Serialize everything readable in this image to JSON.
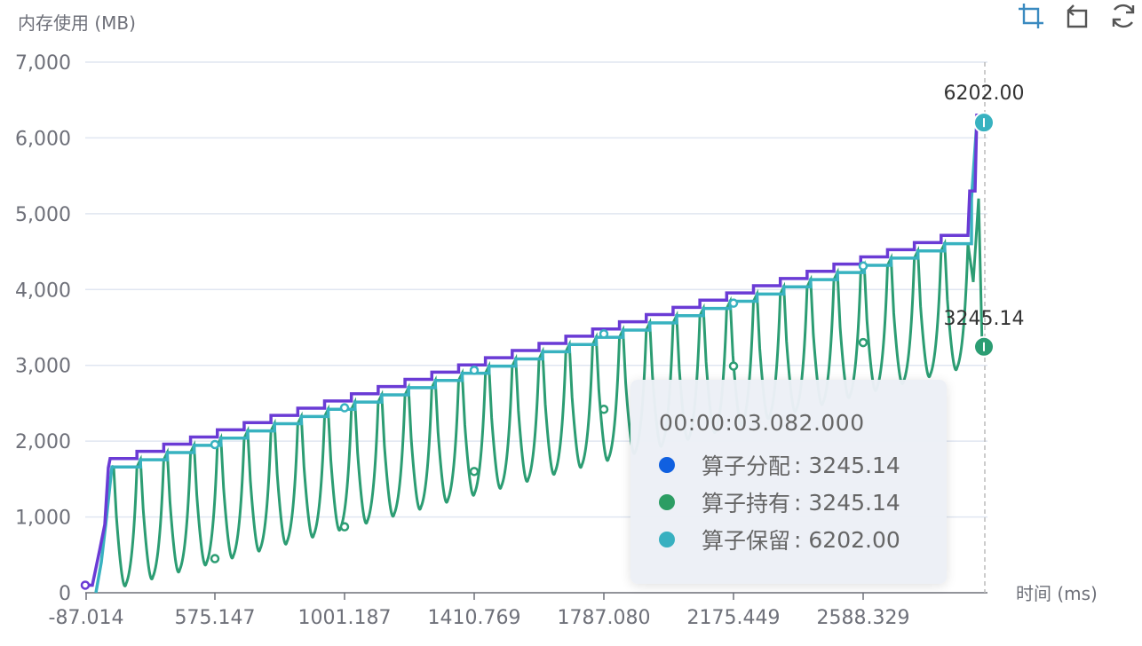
{
  "toolbar": {
    "icons": [
      "zoom-icon",
      "zoom-reset-icon",
      "restore-icon"
    ]
  },
  "chart_data": {
    "type": "line",
    "ylabel": "内存使用 (MB)",
    "xlabel": "时间 (ms)",
    "ylim": [
      0,
      7000
    ],
    "yticks": [
      "0",
      "1,000",
      "2,000",
      "3,000",
      "4,000",
      "5,000",
      "6,000",
      "7,000"
    ],
    "xticks": [
      "-87.014",
      "575.147",
      "1001.187",
      "1410.769",
      "1787.080",
      "2175.449",
      "2588.329"
    ],
    "grid": true,
    "series": [
      {
        "name": "算子分配",
        "color": "#6a3bd5",
        "end_value": 3245.14
      },
      {
        "name": "算子持有",
        "color": "#2c9d73",
        "end_value": 3245.14,
        "end_label": "3245.14"
      },
      {
        "name": "算子保留",
        "color": "#38b2c0",
        "end_value": 6202.0,
        "end_label": "6202.00"
      }
    ],
    "tooltip": {
      "title": "00:00:03.082.000",
      "rows": [
        {
          "name": "算子分配",
          "value": "3245.14",
          "color": "#1060e0"
        },
        {
          "name": "算子持有",
          "value": "3245.14",
          "color": "#2c9d63"
        },
        {
          "name": "算子保留",
          "value": "6202.00",
          "color": "#38b0c0"
        }
      ]
    }
  }
}
